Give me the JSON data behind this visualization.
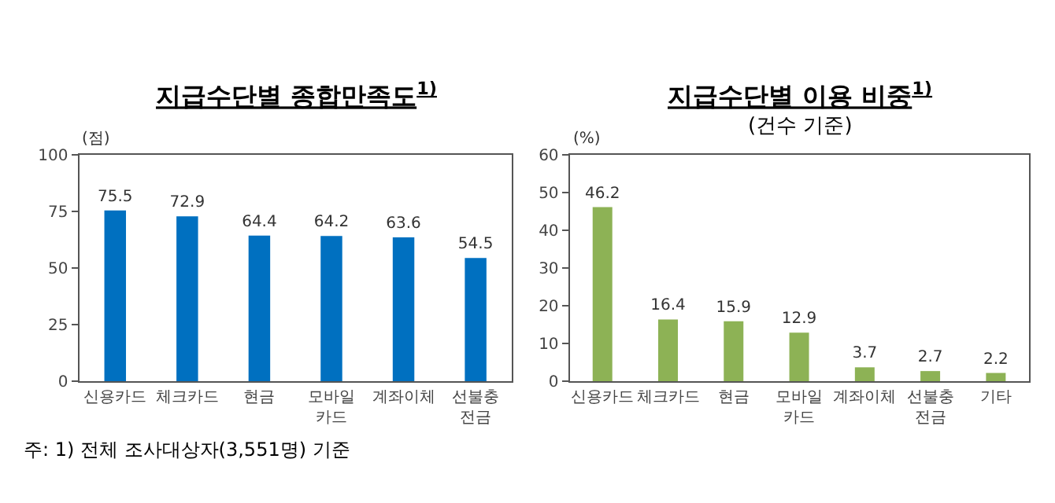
{
  "chart_data": [
    {
      "type": "bar",
      "title": "지급수단별 종합만족도$^{1)}$",
      "ylabel": "(점)",
      "categories": [
        "신용카드",
        "체크카드",
        "현금",
        "모바일 카드",
        "계좌이체",
        "선불충전금"
      ],
      "values": [
        75.5,
        72.9,
        64.4,
        64.2,
        63.6,
        54.5
      ],
      "color": "#0070c0",
      "ylim": [
        0,
        100
      ],
      "yticks": [
        0,
        25,
        50,
        75,
        100
      ],
      "data_labels": true,
      "annotations": [
        "주: 1) 전체 조사대상자(3,551명) 기준"
      ]
    },
    {
      "type": "bar",
      "title": "지급수단별 이용 비중$^{1)}$",
      "subtitle": "(건수 기준)",
      "ylabel": "(%)",
      "categories": [
        "신용카드",
        "체크카드",
        "현금",
        "모바일 카드",
        "계좌이체",
        "선불충전금",
        "기타"
      ],
      "values": [
        46.2,
        16.4,
        15.9,
        12.9,
        3.7,
        2.7,
        2.2
      ],
      "color": "#8db255",
      "ylim": [
        0,
        60
      ],
      "yticks": [
        0,
        10,
        20,
        30,
        40,
        50,
        60
      ],
      "data_labels": true
    }
  ]
}
